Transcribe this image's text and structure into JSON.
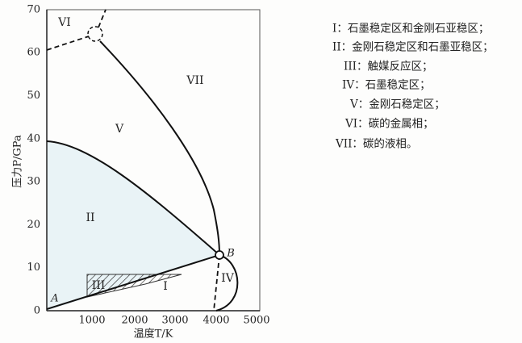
{
  "diagram": {
    "x_ticks": [
      "1000",
      "2000",
      "3000",
      "4000",
      "5000"
    ],
    "y_ticks": [
      "0",
      "10",
      "20",
      "30",
      "40",
      "50",
      "60",
      "70"
    ],
    "x_label": "温度T/K",
    "y_label": "压力P/GPa",
    "regions": [
      "VI",
      "VII",
      "V",
      "II",
      "III",
      "I",
      "IV"
    ],
    "points": [
      "A",
      "B"
    ],
    "legend": [
      "I：石墨稳定区和金刚石亚稳区；",
      "II：金刚石稳定区和石墨亚稳区；",
      "III：触媒反应区；",
      "IV：石墨稳定区；",
      "V：金刚石稳定区；",
      "VI：碳的金属相；",
      "VII：碳的液相。"
    ]
  }
}
